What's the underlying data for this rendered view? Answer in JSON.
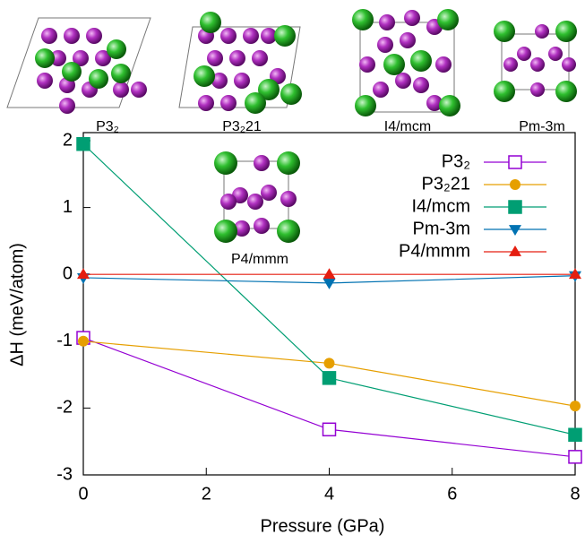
{
  "chart_data": {
    "type": "line",
    "x_label": "Pressure (GPa)",
    "y_label": "ΔH (meV/atom)",
    "x": [
      0,
      4,
      8
    ],
    "series": [
      {
        "name": "P3₂",
        "color": "#9400d3",
        "marker": "open-square",
        "values": [
          -0.95,
          -2.32,
          -2.73
        ]
      },
      {
        "name": "P3₂21",
        "color": "#e69f00",
        "marker": "circle",
        "values": [
          -1.0,
          -1.33,
          -1.97
        ]
      },
      {
        "name": "I4/mcm",
        "color": "#009e73",
        "marker": "square",
        "values": [
          1.95,
          -1.55,
          -2.4
        ]
      },
      {
        "name": "Pm-3m",
        "color": "#0072b2",
        "marker": "triangle-down",
        "values": [
          -0.05,
          -0.13,
          -0.02
        ]
      },
      {
        "name": "P4/mmm",
        "color": "#e51e10",
        "marker": "triangle-up",
        "values": [
          0,
          0,
          0
        ]
      }
    ],
    "xlim": [
      0,
      8
    ],
    "xticks": [
      0,
      2,
      4,
      6,
      8
    ],
    "ylim": [
      -3,
      2
    ],
    "yticks": [
      -3,
      -2,
      -1,
      0,
      1,
      2
    ],
    "grid": false,
    "legend": "upper right",
    "structure_labels": [
      "P3₂",
      "P3₂21",
      "I4/mcm",
      "Pm-3m",
      "P4/mmm"
    ]
  }
}
